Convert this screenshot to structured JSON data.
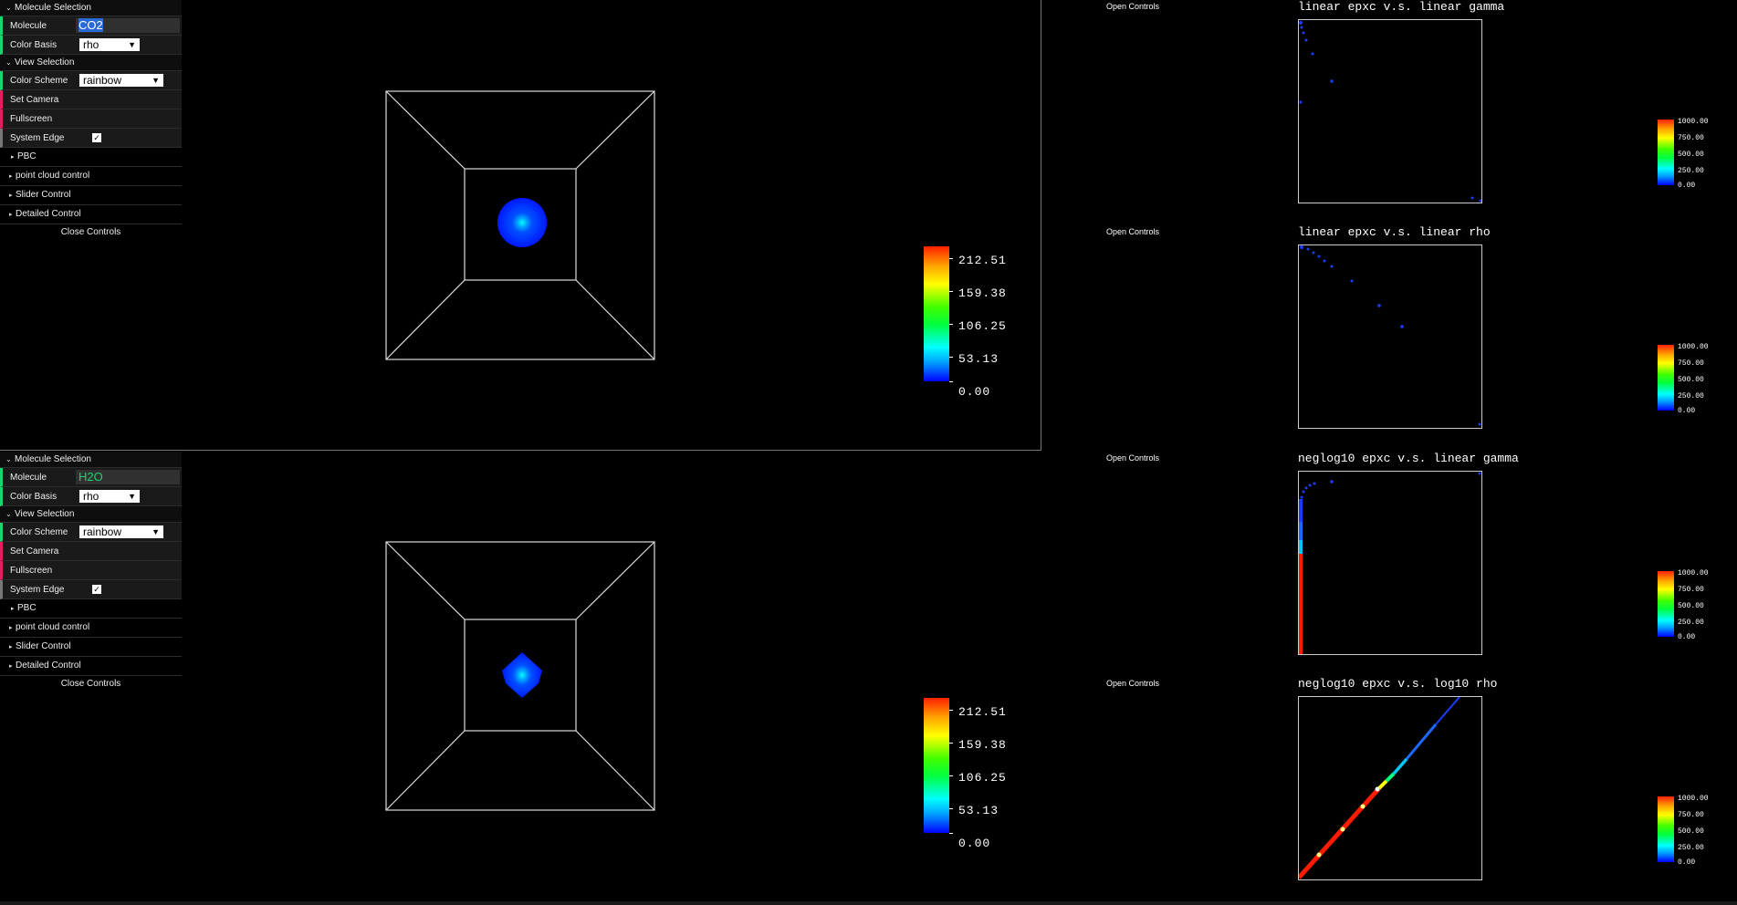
{
  "viewers": [
    {
      "gui": {
        "molecule_selection": "Molecule Selection",
        "molecule_label": "Molecule",
        "molecule_value": "CO2",
        "color_basis_label": "Color Basis",
        "color_basis_value": "rho",
        "view_selection": "View Selection",
        "color_scheme_label": "Color Scheme",
        "color_scheme_value": "rainbow",
        "set_camera": "Set Camera",
        "fullscreen": "Fullscreen",
        "system_edge_label": "System Edge",
        "system_edge_checked": true,
        "pbc": "PBC",
        "point_cloud_control": "point cloud control",
        "slider_control": "Slider Control",
        "detailed_control": "Detailed Control",
        "close_controls": "Close Controls"
      },
      "legend": [
        "212.51",
        "159.38",
        "106.25",
        "53.13",
        "0.00"
      ]
    },
    {
      "gui": {
        "molecule_selection": "Molecule Selection",
        "molecule_label": "Molecule",
        "molecule_value": "H2O",
        "color_basis_label": "Color Basis",
        "color_basis_value": "rho",
        "view_selection": "View Selection",
        "color_scheme_label": "Color Scheme",
        "color_scheme_value": "rainbow",
        "set_camera": "Set Camera",
        "fullscreen": "Fullscreen",
        "system_edge_label": "System Edge",
        "system_edge_checked": true,
        "pbc": "PBC",
        "point_cloud_control": "point cloud control",
        "slider_control": "Slider Control",
        "detailed_control": "Detailed Control",
        "close_controls": "Close Controls"
      },
      "legend": [
        "212.51",
        "159.38",
        "106.25",
        "53.13",
        "0.00"
      ]
    }
  ],
  "plots": [
    {
      "open_controls": "Open Controls",
      "title": "linear epxc v.s. linear gamma",
      "legend": [
        "1000.00",
        "750.00",
        "500.00",
        "250.00",
        "0.00"
      ]
    },
    {
      "open_controls": "Open Controls",
      "title": "linear epxc v.s. linear rho",
      "legend": [
        "1000.00",
        "750.00",
        "500.00",
        "250.00",
        "0.00"
      ]
    },
    {
      "open_controls": "Open Controls",
      "title": "neglog10 epxc v.s. linear gamma",
      "legend": [
        "1000.00",
        "750.00",
        "500.00",
        "250.00",
        "0.00"
      ]
    },
    {
      "open_controls": "Open Controls",
      "title": "neglog10 epxc v.s. log10 rho",
      "legend": [
        "1000.00",
        "750.00",
        "500.00",
        "250.00",
        "0.00"
      ]
    }
  ],
  "colors": {
    "gui_accent_blue": "#2fa1d6",
    "gui_accent_green": "#1ed36f",
    "gui_accent_red": "#e61d5f",
    "background": "#000000",
    "frame": "#cccccc"
  }
}
